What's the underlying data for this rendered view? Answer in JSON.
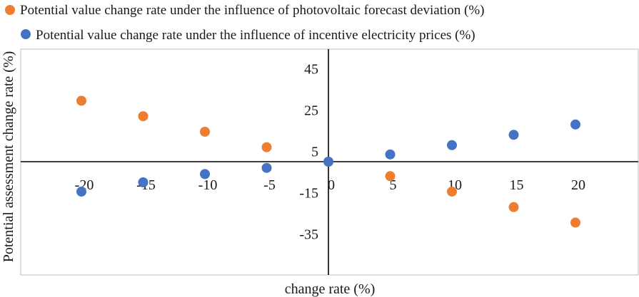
{
  "chart_data": {
    "type": "scatter",
    "title": "",
    "xlabel": "change rate (%)",
    "ylabel": "Potential assessment change rate (%)",
    "xlim": [
      -25,
      25
    ],
    "ylim": [
      -55,
      50
    ],
    "xticks": [
      -20,
      -15,
      -10,
      -5,
      0,
      5,
      10,
      15,
      20
    ],
    "yticks": [
      45,
      25,
      5,
      -15,
      -35
    ],
    "legend_position": "top-left",
    "grid": false,
    "series": [
      {
        "name": "Potential value change rate under the influence of photovoltaic forecast deviation (%)",
        "color": "#ED7D31",
        "x": [
          -20,
          -15,
          -10,
          -5,
          0,
          5,
          10,
          15,
          20
        ],
        "y": [
          29.5,
          22,
          14.5,
          7,
          0,
          -7,
          -14.5,
          -22,
          -29.5
        ]
      },
      {
        "name": "Potential value change rate under the influence of incentive electricity prices (%)",
        "color": "#4472C4",
        "x": [
          -20,
          -15,
          -10,
          -5,
          0,
          5,
          10,
          15,
          20
        ],
        "y": [
          -14.5,
          -10,
          -6,
          -3,
          0,
          3.5,
          8,
          13,
          18
        ]
      }
    ]
  }
}
